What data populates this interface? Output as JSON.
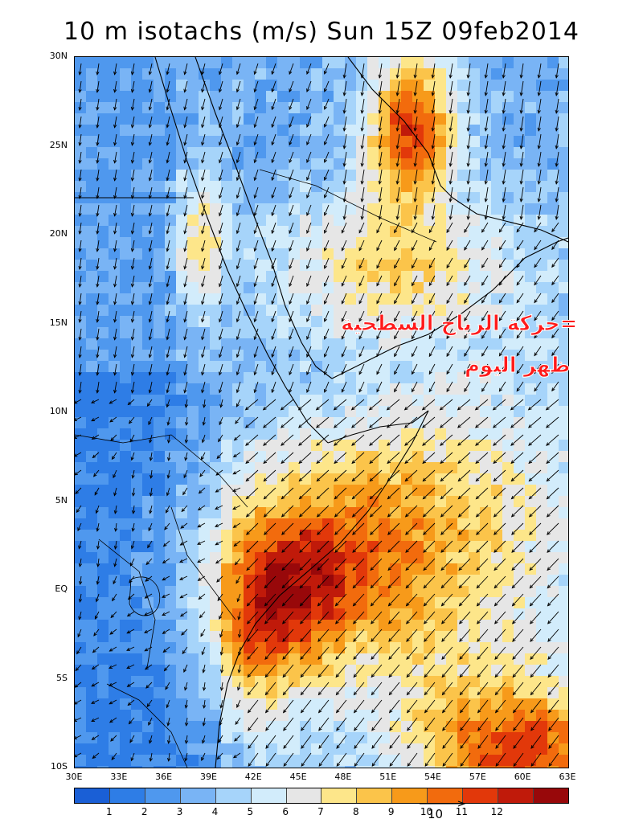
{
  "title": "10 m isotachs (m/s) Sun 15Z 09feb2014",
  "annotation": {
    "line1": "=حركة الرياح السطحية",
    "line2": "ظهر اليوم",
    "color": "#ff1a1a"
  },
  "axes": {
    "lat_labels": [
      "30N",
      "25N",
      "20N",
      "15N",
      "10N",
      "5N",
      "EQ",
      "5S",
      "10S"
    ],
    "lon_labels": [
      "30E",
      "33E",
      "36E",
      "39E",
      "42E",
      "45E",
      "48E",
      "51E",
      "54E",
      "57E",
      "60E",
      "63E"
    ],
    "lat_range": [
      -10,
      30
    ],
    "lon_range": [
      30,
      63
    ]
  },
  "colorbar": {
    "colors": [
      "#1a5fd6",
      "#2e7de6",
      "#4f98ee",
      "#79b4f5",
      "#a6d4fa",
      "#d2ecfb",
      "#e6e6e6",
      "#fde68a",
      "#fbc44a",
      "#f79a1a",
      "#f26b0d",
      "#e2380a",
      "#c01a0a",
      "#98080a"
    ],
    "labels": [
      "1",
      "2",
      "3",
      "4",
      "5",
      "6",
      "7",
      "8",
      "9",
      "10",
      "11",
      "12"
    ]
  },
  "reference_vector": {
    "label": "10"
  },
  "map": {
    "background_color": "#4f98ee",
    "border_color": "#000000",
    "arrow_color": "#000000"
  }
}
